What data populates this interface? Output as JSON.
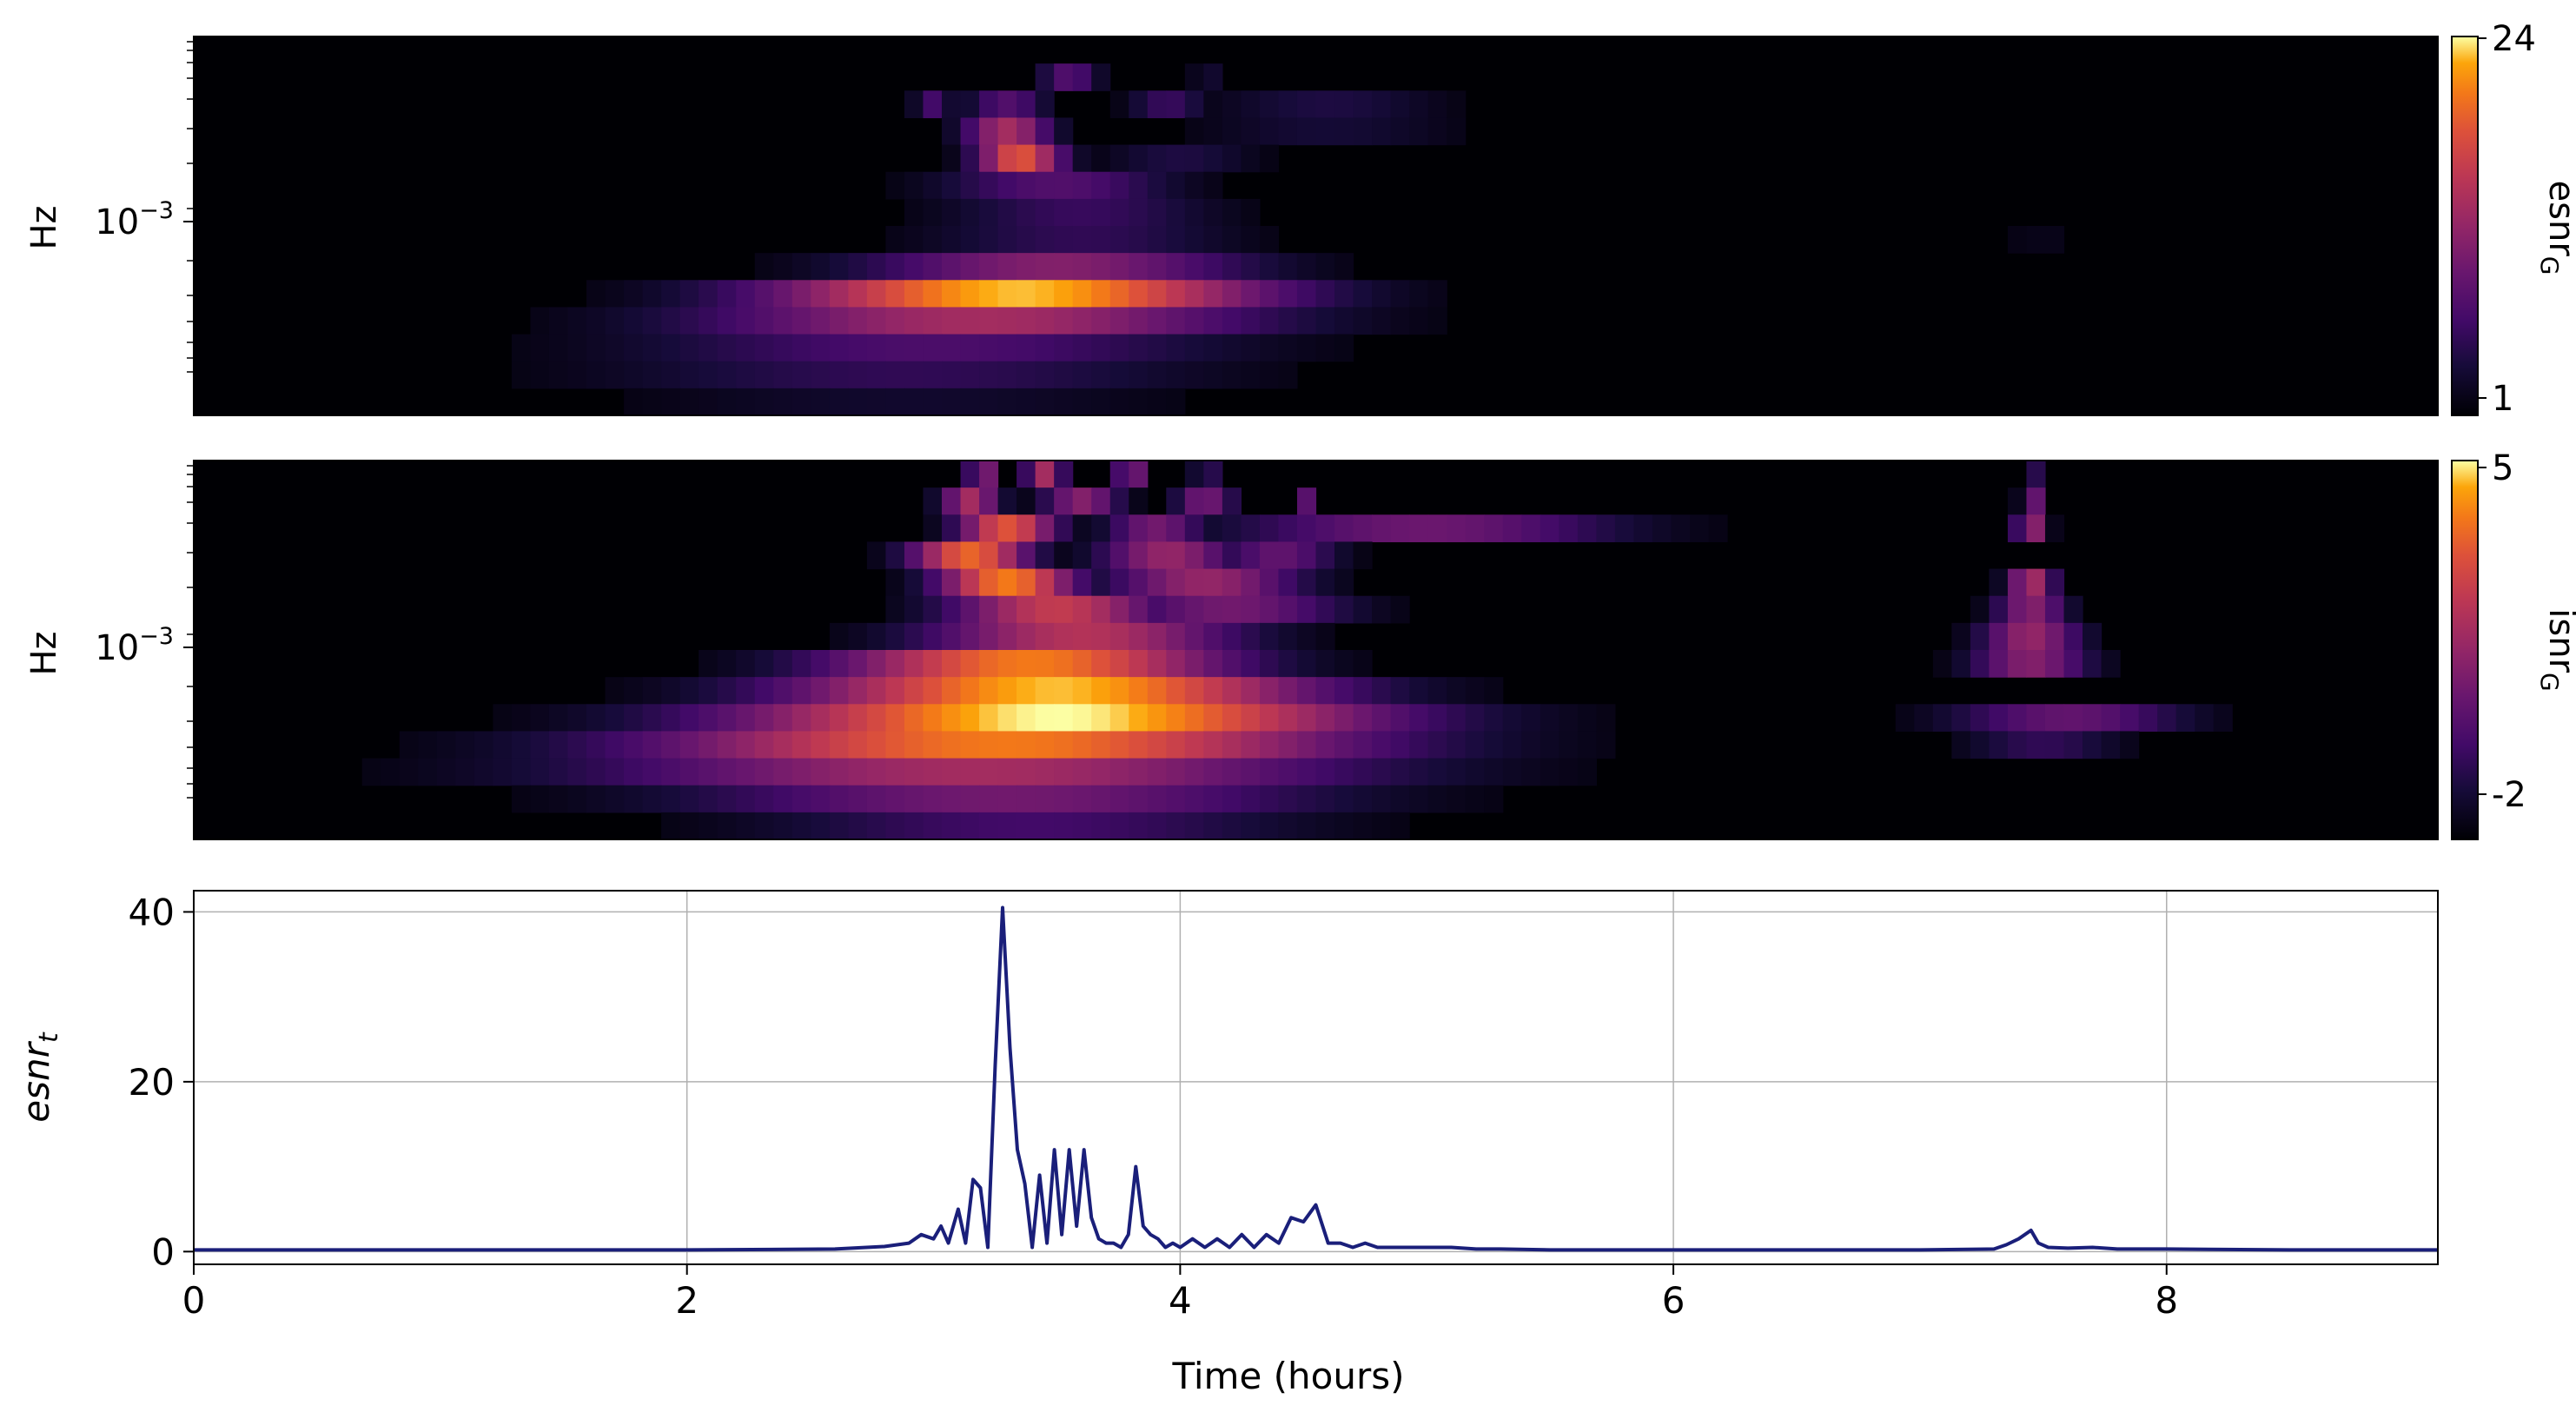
{
  "colors": {
    "line": "#1a1f7a",
    "grid": "#b0b0b0",
    "axes": "#000000",
    "background": "#ffffff",
    "colormap": "inferno"
  },
  "chart_data": [
    {
      "type": "heatmap",
      "panel": "top",
      "ylabel": "Hz",
      "y_scale": "log",
      "ytick_labels": [
        {
          "base": "10",
          "exp": "−3"
        }
      ],
      "x_range_hours": [
        0,
        9.1
      ],
      "colorbar": {
        "label": "esnr",
        "label_sub": "G",
        "tick_labels": [
          "24",
          "1"
        ],
        "range": [
          1,
          24
        ]
      },
      "bands": [
        {
          "row": 1,
          "segments": [
            {
              "center": 3.55,
              "half_width": 0.15,
              "value": 0.3
            },
            {
              "center": 4.1,
              "half_width": 0.05,
              "value": 0.2
            }
          ]
        },
        {
          "row": 2,
          "segments": [
            {
              "center": 3.0,
              "half_width": 0.1,
              "value": 0.25
            },
            {
              "center": 3.3,
              "half_width": 0.2,
              "value": 0.3
            },
            {
              "center": 3.95,
              "half_width": 0.2,
              "value": 0.22
            },
            {
              "center": 4.6,
              "half_width": 0.6,
              "value": 0.15
            }
          ]
        },
        {
          "row": 3,
          "segments": [
            {
              "center": 3.3,
              "half_width": 0.22,
              "value": 0.55
            },
            {
              "center": 4.6,
              "half_width": 0.7,
              "value": 0.12
            }
          ]
        },
        {
          "row": 4,
          "segments": [
            {
              "center": 3.35,
              "half_width": 0.22,
              "value": 0.75
            },
            {
              "center": 4.0,
              "half_width": 0.4,
              "value": 0.15
            }
          ]
        },
        {
          "row": 5,
          "segments": [
            {
              "center": 3.5,
              "half_width": 0.6,
              "value": 0.3
            }
          ]
        },
        {
          "row": 6,
          "segments": [
            {
              "center": 3.6,
              "half_width": 0.7,
              "value": 0.22
            }
          ]
        },
        {
          "row": 7,
          "segments": [
            {
              "center": 3.6,
              "half_width": 0.8,
              "value": 0.2
            },
            {
              "center": 7.5,
              "half_width": 0.3,
              "value": 0.05
            }
          ]
        },
        {
          "row": 8,
          "segments": [
            {
              "center": 3.5,
              "half_width": 1.0,
              "value": 0.45
            }
          ]
        },
        {
          "row": 9,
          "segments": [
            {
              "center": 3.35,
              "half_width": 1.25,
              "value": 0.95
            },
            {
              "center": 7.5,
              "half_width": 0.4,
              "value": 0.04
            }
          ]
        },
        {
          "row": 10,
          "segments": [
            {
              "center": 3.2,
              "half_width": 1.45,
              "value": 0.55
            }
          ]
        },
        {
          "row": 11,
          "segments": [
            {
              "center": 3.0,
              "half_width": 1.55,
              "value": 0.28
            }
          ]
        },
        {
          "row": 12,
          "segments": [
            {
              "center": 2.9,
              "half_width": 1.6,
              "value": 0.2
            }
          ]
        },
        {
          "row": 13,
          "segments": [
            {
              "center": 2.9,
              "half_width": 1.5,
              "value": 0.1
            }
          ]
        }
      ]
    },
    {
      "type": "heatmap",
      "panel": "middle",
      "ylabel": "Hz",
      "y_scale": "log",
      "ytick_labels": [
        {
          "base": "10",
          "exp": "−3"
        }
      ],
      "x_range_hours": [
        0,
        9.1
      ],
      "colorbar": {
        "label": "isnr",
        "label_sub": "G",
        "tick_labels": [
          "5",
          "-2"
        ],
        "range": [
          -2,
          5
        ]
      },
      "bands": [
        {
          "row": 0,
          "segments": [
            {
              "center": 3.2,
              "half_width": 0.08,
              "value": 0.45
            },
            {
              "center": 3.45,
              "half_width": 0.1,
              "value": 0.55
            },
            {
              "center": 3.8,
              "half_width": 0.08,
              "value": 0.45
            },
            {
              "center": 4.1,
              "half_width": 0.05,
              "value": 0.35
            },
            {
              "center": 7.45,
              "half_width": 0.03,
              "value": 0.35
            }
          ]
        },
        {
          "row": 1,
          "segments": [
            {
              "center": 3.15,
              "half_width": 0.15,
              "value": 0.55
            },
            {
              "center": 3.6,
              "half_width": 0.2,
              "value": 0.45
            },
            {
              "center": 4.1,
              "half_width": 0.15,
              "value": 0.4
            },
            {
              "center": 4.5,
              "half_width": 0.05,
              "value": 0.35
            },
            {
              "center": 7.45,
              "half_width": 0.05,
              "value": 0.45
            }
          ]
        },
        {
          "row": 2,
          "segments": [
            {
              "center": 3.3,
              "half_width": 0.25,
              "value": 0.75
            },
            {
              "center": 3.9,
              "half_width": 0.25,
              "value": 0.4
            },
            {
              "center": 5.0,
              "half_width": 1.0,
              "value": 0.38
            },
            {
              "center": 7.45,
              "half_width": 0.08,
              "value": 0.5
            }
          ]
        },
        {
          "row": 3,
          "segments": [
            {
              "center": 3.15,
              "half_width": 0.3,
              "value": 0.8
            },
            {
              "center": 3.95,
              "half_width": 0.35,
              "value": 0.5
            },
            {
              "center": 4.4,
              "half_width": 0.3,
              "value": 0.35
            }
          ]
        },
        {
          "row": 4,
          "segments": [
            {
              "center": 3.3,
              "half_width": 0.35,
              "value": 0.85
            },
            {
              "center": 4.1,
              "half_width": 0.5,
              "value": 0.5
            },
            {
              "center": 7.45,
              "half_width": 0.12,
              "value": 0.55
            }
          ]
        },
        {
          "row": 5,
          "segments": [
            {
              "center": 3.5,
              "half_width": 0.55,
              "value": 0.65
            },
            {
              "center": 4.2,
              "half_width": 0.6,
              "value": 0.4
            },
            {
              "center": 7.45,
              "half_width": 0.18,
              "value": 0.45
            }
          ]
        },
        {
          "row": 6,
          "segments": [
            {
              "center": 3.6,
              "half_width": 0.8,
              "value": 0.6
            },
            {
              "center": 7.45,
              "half_width": 0.25,
              "value": 0.5
            }
          ]
        },
        {
          "row": 7,
          "segments": [
            {
              "center": 3.4,
              "half_width": 1.0,
              "value": 0.85
            },
            {
              "center": 7.45,
              "half_width": 0.3,
              "value": 0.45
            }
          ]
        },
        {
          "row": 8,
          "segments": [
            {
              "center": 3.5,
              "half_width": 1.3,
              "value": 0.95
            }
          ]
        },
        {
          "row": 9,
          "segments": [
            {
              "center": 3.5,
              "half_width": 1.6,
              "value": 1.0
            },
            {
              "center": 7.6,
              "half_width": 0.6,
              "value": 0.35
            }
          ]
        },
        {
          "row": 10,
          "segments": [
            {
              "center": 3.3,
              "half_width": 1.8,
              "value": 0.85
            },
            {
              "center": 7.5,
              "half_width": 0.4,
              "value": 0.2
            }
          ]
        },
        {
          "row": 11,
          "segments": [
            {
              "center": 3.2,
              "half_width": 1.95,
              "value": 0.55
            }
          ]
        },
        {
          "row": 12,
          "segments": [
            {
              "center": 3.3,
              "half_width": 1.65,
              "value": 0.4
            }
          ]
        },
        {
          "row": 13,
          "segments": [
            {
              "center": 3.4,
              "half_width": 1.4,
              "value": 0.25
            }
          ]
        }
      ]
    },
    {
      "type": "line",
      "panel": "bottom",
      "ylabel": "esnr",
      "ylabel_sub": "t",
      "xlabel": "Time (hours)",
      "xlim": [
        0,
        9.1
      ],
      "ylim": [
        -1.5,
        42.5
      ],
      "grid": true,
      "xticks": [
        {
          "value": 0,
          "label": "0"
        },
        {
          "value": 2,
          "label": "2"
        },
        {
          "value": 4,
          "label": "4"
        },
        {
          "value": 6,
          "label": "6"
        },
        {
          "value": 8,
          "label": "8"
        }
      ],
      "yticks": [
        {
          "value": 0,
          "label": "0"
        },
        {
          "value": 20,
          "label": "20"
        },
        {
          "value": 40,
          "label": "40"
        }
      ],
      "series": [
        {
          "x": [
            0,
            1.0,
            2.0,
            2.6,
            2.8,
            2.9,
            2.95,
            3.0,
            3.03,
            3.06,
            3.1,
            3.13,
            3.16,
            3.19,
            3.22,
            3.25,
            3.28,
            3.31,
            3.34,
            3.37,
            3.4,
            3.43,
            3.46,
            3.49,
            3.52,
            3.55,
            3.58,
            3.61,
            3.64,
            3.67,
            3.7,
            3.73,
            3.76,
            3.79,
            3.82,
            3.85,
            3.88,
            3.91,
            3.94,
            3.97,
            4.0,
            4.05,
            4.1,
            4.15,
            4.2,
            4.25,
            4.3,
            4.35,
            4.4,
            4.45,
            4.5,
            4.55,
            4.6,
            4.65,
            4.7,
            4.75,
            4.8,
            4.9,
            5.0,
            5.1,
            5.2,
            5.3,
            5.5,
            5.7,
            6.0,
            6.5,
            7.0,
            7.3,
            7.35,
            7.4,
            7.45,
            7.48,
            7.52,
            7.6,
            7.7,
            7.8,
            8.0,
            8.5,
            9.1
          ],
          "y": [
            0.2,
            0.2,
            0.2,
            0.3,
            0.6,
            1.0,
            2.0,
            1.5,
            3.0,
            1.0,
            5.0,
            1.0,
            8.5,
            7.5,
            0.5,
            22.0,
            40.5,
            24.0,
            12.0,
            8.0,
            0.5,
            9.0,
            1.0,
            12.0,
            2.0,
            12.0,
            3.0,
            12.0,
            4.0,
            1.5,
            1.0,
            1.0,
            0.5,
            2.0,
            10.0,
            3.0,
            2.0,
            1.5,
            0.5,
            1.0,
            0.5,
            1.5,
            0.5,
            1.5,
            0.5,
            2.0,
            0.5,
            2.0,
            1.0,
            4.0,
            3.5,
            5.5,
            1.0,
            1.0,
            0.5,
            1.0,
            0.5,
            0.5,
            0.5,
            0.5,
            0.3,
            0.3,
            0.2,
            0.2,
            0.2,
            0.2,
            0.2,
            0.3,
            0.8,
            1.5,
            2.5,
            1.0,
            0.5,
            0.4,
            0.5,
            0.3,
            0.3,
            0.2,
            0.2
          ]
        }
      ]
    }
  ]
}
